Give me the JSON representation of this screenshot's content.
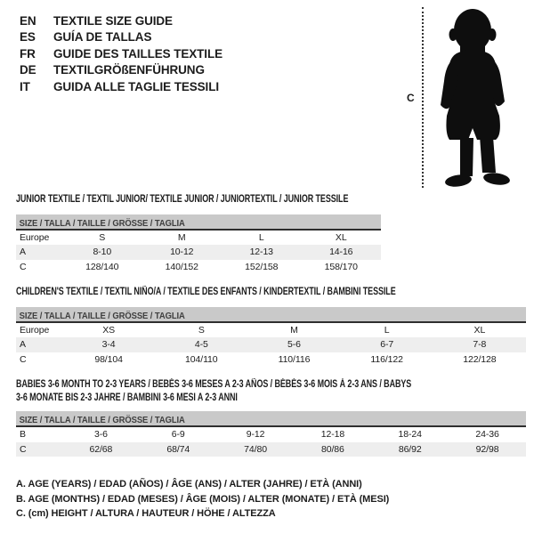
{
  "colors": {
    "text": "#1c1c1c",
    "size_bar_bg": "#c9c9c9",
    "size_bar_text": "#3f3f3f",
    "shaded_row_bg": "#eeeeee",
    "rule_dark": "#2e2e2e",
    "silhouette": "#0e0e0e",
    "background": "#ffffff"
  },
  "languages": [
    {
      "code": "EN",
      "title": "TEXTILE SIZE GUIDE"
    },
    {
      "code": "ES",
      "title": "GUÍA DE TALLAS"
    },
    {
      "code": "FR",
      "title": "GUIDE DES TAILLES TEXTILE"
    },
    {
      "code": "DE",
      "title": "TEXTILGRÖßENFÜHRUNG"
    },
    {
      "code": "IT",
      "title": "GUIDA ALLE TAGLIE TESSILI"
    }
  ],
  "figure": {
    "label": "C",
    "icon": "toddler-silhouette"
  },
  "tables": [
    {
      "title": "JUNIOR TEXTILE / TEXTIL JUNIOR/ TEXTILE JUNIOR / JUNIORTEXTIL / JUNIOR TESSILE",
      "size_header": "SIZE / TALLA / TAILLE / GRÖSSE / TAGLIA",
      "rows": [
        {
          "shaded": false,
          "cells": [
            "Europe",
            "S",
            "M",
            "L",
            "XL"
          ]
        },
        {
          "shaded": true,
          "cells": [
            "A",
            "8-10",
            "10-12",
            "12-13",
            "14-16"
          ]
        },
        {
          "shaded": false,
          "cells": [
            "C",
            "128/140",
            "140/152",
            "152/158",
            "158/170"
          ]
        }
      ]
    },
    {
      "title": "CHILDREN'S TEXTILE / TEXTIL NIÑO/A / TEXTILE DES ENFANTS / KINDERTEXTIL / BAMBINI TESSILE",
      "size_header": "SIZE / TALLA / TAILLE / GRÖSSE / TAGLIA",
      "rows": [
        {
          "shaded": false,
          "cells": [
            "Europe",
            "XS",
            "S",
            "M",
            "L",
            "XL"
          ]
        },
        {
          "shaded": true,
          "cells": [
            "A",
            "3-4",
            "4-5",
            "5-6",
            "6-7",
            "7-8"
          ]
        },
        {
          "shaded": false,
          "cells": [
            "C",
            "98/104",
            "104/110",
            "110/116",
            "116/122",
            "122/128"
          ]
        }
      ]
    },
    {
      "title": "BABIES 3-6 MONTH TO 2-3 YEARS / BEBÉS 3-6 MESES A 2-3 AÑOS / BÉBÉS 3-6 MOIS À 2-3 ANS / BABYS 3-6 MONATE BIS 2-3 JAHRE / BAMBINI 3-6 MESI A 2-3 ANNI",
      "size_header": "SIZE / TALLA / TAILLE / GRÖSSE / TAGLIA",
      "rows": [
        {
          "shaded": false,
          "cells": [
            "B",
            "3-6",
            "6-9",
            "9-12",
            "12-18",
            "18-24",
            "24-36"
          ]
        },
        {
          "shaded": true,
          "cells": [
            "C",
            "62/68",
            "68/74",
            "74/80",
            "80/86",
            "86/92",
            "92/98"
          ]
        }
      ]
    }
  ],
  "legend": [
    "A. AGE (YEARS) / EDAD (AÑOS) / ÂGE (ANS) / ALTER (JAHRE) / ETÀ (ANNI)",
    "B. AGE (MONTHS) / EDAD (MESES) / ÂGE (MOIS) / ALTER (MONATE) / ETÀ (MESI)",
    "C. (cm) HEIGHT / ALTURA / HAUTEUR / HÖHE / ALTEZZA"
  ]
}
